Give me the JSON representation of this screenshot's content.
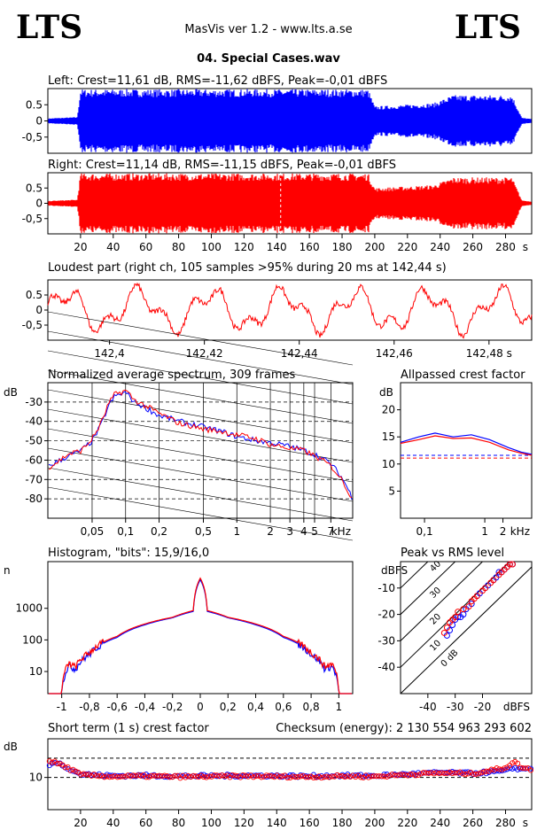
{
  "header": {
    "logo_left": "LTS",
    "logo_right": "LTS",
    "app_title": "MasVis ver 1.2 - www.lts.a.se",
    "file_name": "04. Special Cases.wav"
  },
  "colors": {
    "left": "#0000ff",
    "right": "#ff0000",
    "grid": "#000000"
  },
  "chart_data": [
    {
      "type": "area",
      "id": "left-waveform",
      "title": "Left: Crest=11,61 dB, RMS=-11,62 dBFS, Peak=-0,01 dBFS",
      "y_tick_labels": [
        "0.5",
        "0",
        "-0,5"
      ],
      "y_ticks": [
        0.5,
        0,
        -0.5
      ],
      "ylim": [
        -1,
        1
      ],
      "xlim": [
        0,
        296
      ],
      "envelope": {
        "t": [
          0,
          18,
          20,
          196,
          200,
          236,
          248,
          284,
          290,
          296
        ],
        "amp": [
          0.08,
          0.12,
          0.98,
          0.98,
          0.45,
          0.55,
          0.8,
          0.8,
          0.1,
          0.06
        ]
      }
    },
    {
      "type": "area",
      "id": "right-waveform",
      "title": "Right: Crest=11,14 dB, RMS=-11,15 dBFS, Peak=-0,01 dBFS",
      "y_tick_labels": [
        "0.5",
        "0",
        "-0,5"
      ],
      "y_ticks": [
        0.5,
        0,
        -0.5
      ],
      "ylim": [
        -1,
        1
      ],
      "xlim": [
        0,
        296
      ],
      "marker_x": 142.44,
      "x_ticks": [
        20,
        40,
        60,
        80,
        100,
        120,
        140,
        160,
        180,
        200,
        220,
        240,
        260,
        280
      ],
      "x_tick_labels": [
        "20",
        "40",
        "60",
        "80",
        "100",
        "120",
        "140",
        "160",
        "180",
        "200",
        "220",
        "240",
        "260",
        "280"
      ],
      "x_unit": "s",
      "envelope": {
        "t": [
          0,
          18,
          20,
          196,
          200,
          236,
          248,
          284,
          290,
          296
        ],
        "amp": [
          0.08,
          0.12,
          0.98,
          0.98,
          0.5,
          0.6,
          0.85,
          0.85,
          0.1,
          0.06
        ]
      }
    },
    {
      "type": "line",
      "id": "loudest-part",
      "title": "Loudest part (right ch, 105 samples >95% during 20 ms at 142,44 s)",
      "xlim": [
        142.387,
        142.489
      ],
      "ylim": [
        -1,
        1
      ],
      "y_ticks": [
        0.5,
        0,
        -0.5
      ],
      "y_tick_labels": [
        "0.5",
        "0",
        "-0,5"
      ],
      "x_ticks": [
        142.4,
        142.42,
        142.44,
        142.46,
        142.48
      ],
      "x_tick_labels": [
        "142,4",
        "142,42",
        "142,44",
        "142,46",
        "142,48 s"
      ]
    },
    {
      "type": "line",
      "id": "avg-spectrum",
      "title": "Normalized average spectrum, 309 frames",
      "ylabel": "dB",
      "ylim": [
        -90,
        -20
      ],
      "y_ticks": [
        -30,
        -40,
        -50,
        -60,
        -70,
        -80
      ],
      "y_tick_labels": [
        "-30",
        "-40",
        "-50",
        "-60",
        "-70",
        "-80"
      ],
      "x_scale": "log",
      "xlim": [
        0.02,
        11
      ],
      "x_ticks": [
        0.05,
        0.1,
        0.2,
        0.5,
        1,
        2,
        3,
        4,
        5,
        7
      ],
      "x_tick_labels": [
        "0,05",
        "0,1",
        "0,2",
        "0,5",
        "1",
        "2",
        "3",
        "4",
        "5",
        "7"
      ],
      "x_unit": "kHz",
      "series": [
        {
          "color": "#0000ff",
          "x": [
            0.02,
            0.03,
            0.04,
            0.05,
            0.06,
            0.07,
            0.08,
            0.1,
            0.12,
            0.15,
            0.2,
            0.3,
            0.5,
            0.7,
            1,
            1.5,
            2,
            3,
            4,
            5,
            7,
            9,
            11
          ],
          "y": [
            -63,
            -58,
            -55,
            -50,
            -42,
            -32,
            -27,
            -25,
            -30,
            -33,
            -37,
            -40,
            -43,
            -45,
            -48,
            -50,
            -51,
            -53,
            -55,
            -57,
            -62,
            -70,
            -80
          ]
        },
        {
          "color": "#ff0000",
          "x": [
            0.02,
            0.03,
            0.04,
            0.05,
            0.06,
            0.07,
            0.08,
            0.1,
            0.12,
            0.15,
            0.2,
            0.3,
            0.5,
            0.7,
            1,
            1.5,
            2,
            3,
            4,
            5,
            7,
            9,
            11
          ],
          "y": [
            -64,
            -57,
            -55,
            -49,
            -41,
            -31,
            -26,
            -24,
            -29,
            -32,
            -36,
            -41,
            -44,
            -45,
            -47,
            -49,
            -52,
            -54,
            -55,
            -58,
            -63,
            -71,
            -81
          ]
        }
      ]
    },
    {
      "type": "line",
      "id": "allpassed-crest",
      "title": "Allpassed crest factor",
      "ylabel": "dB",
      "ylim": [
        0,
        25
      ],
      "y_ticks": [
        20,
        15,
        10,
        5
      ],
      "y_tick_labels": [
        "20",
        "15",
        "10",
        "5"
      ],
      "x_scale": "log",
      "xlim": [
        0.04,
        6
      ],
      "x_ticks": [
        0.1,
        1,
        2
      ],
      "x_tick_labels": [
        "0,1",
        "1",
        "2"
      ],
      "x_unit": "kHz",
      "ref_lines": [
        {
          "color": "#0000ff",
          "y": 11.6
        },
        {
          "color": "#ff0000",
          "y": 11.1
        }
      ],
      "series": [
        {
          "color": "#0000ff",
          "x": [
            0.04,
            0.08,
            0.15,
            0.3,
            0.6,
            1.2,
            2.5,
            4,
            6
          ],
          "y": [
            14,
            15,
            15.7,
            15.0,
            15.4,
            14.5,
            13.0,
            12.2,
            11.8
          ]
        },
        {
          "color": "#ff0000",
          "x": [
            0.04,
            0.08,
            0.15,
            0.3,
            0.6,
            1.2,
            2.5,
            4,
            6
          ],
          "y": [
            13.8,
            14.5,
            15.2,
            14.7,
            14.8,
            14.0,
            12.6,
            12.0,
            11.6
          ]
        }
      ]
    },
    {
      "type": "line",
      "id": "histogram",
      "title": "Histogram, \"bits\": 15,9/16,0",
      "ylabel": "n",
      "y_scale": "log",
      "ylim": [
        2,
        30000
      ],
      "y_ticks": [
        10,
        100,
        1000
      ],
      "y_tick_labels": [
        "10",
        "100",
        "1000"
      ],
      "xlim": [
        -1.1,
        1.1
      ],
      "x_ticks": [
        -1,
        -0.8,
        -0.6,
        -0.4,
        -0.2,
        0,
        0.2,
        0.4,
        0.6,
        0.8,
        1
      ],
      "x_tick_labels": [
        "-1",
        "-0,8",
        "-0,6",
        "-0,4",
        "-0,2",
        "0",
        "0,2",
        "0,4",
        "0,6",
        "0,8",
        "1"
      ],
      "series": [
        {
          "color": "#0000ff",
          "x": [
            -1.1,
            -1.0,
            -0.99,
            -0.95,
            -0.9,
            -0.8,
            -0.6,
            -0.4,
            -0.2,
            -0.05,
            0,
            0.05,
            0.2,
            0.4,
            0.6,
            0.8,
            0.9,
            0.95,
            0.99,
            1.0,
            1.1
          ],
          "y": [
            2,
            2,
            5,
            15,
            12,
            35,
            120,
            300,
            500,
            800,
            8000,
            800,
            500,
            300,
            120,
            35,
            12,
            15,
            5,
            2,
            2
          ]
        },
        {
          "color": "#ff0000",
          "x": [
            -1.1,
            -1.0,
            -0.99,
            -0.95,
            -0.9,
            -0.8,
            -0.6,
            -0.4,
            -0.2,
            -0.05,
            0,
            0.05,
            0.2,
            0.4,
            0.6,
            0.8,
            0.9,
            0.95,
            0.99,
            1.0,
            1.1
          ],
          "y": [
            2,
            2,
            6,
            18,
            14,
            40,
            130,
            320,
            520,
            850,
            9000,
            850,
            520,
            320,
            130,
            40,
            14,
            18,
            6,
            2,
            2
          ]
        }
      ]
    },
    {
      "type": "scatter",
      "id": "peak-vs-rms",
      "title": "Peak vs RMS level",
      "ylabel": "dBFS",
      "ylim": [
        -50,
        0
      ],
      "y_ticks": [
        -10,
        -20,
        -30,
        -40
      ],
      "y_tick_labels": [
        "-10",
        "-20",
        "-30",
        "-40"
      ],
      "xlim": [
        -50,
        -2
      ],
      "x_ticks": [
        -40,
        -30,
        -20
      ],
      "x_tick_labels": [
        "-40",
        "-30",
        "-20"
      ],
      "x_unit": "dBFS",
      "crest_lines": [
        0,
        10,
        20,
        30,
        40
      ],
      "crest_line_labels": [
        "0 dB",
        "10",
        "20",
        "30",
        "40"
      ],
      "series": [
        {
          "color": "#0000ff",
          "x": [
            -33,
            -32,
            -31,
            -30,
            -29,
            -28,
            -27,
            -26,
            -24,
            -22,
            -21,
            -19,
            -18,
            -16,
            -15,
            -14,
            -13,
            -12,
            -11,
            -10,
            -9
          ],
          "y": [
            -28,
            -26,
            -24,
            -22,
            -21,
            -21,
            -20,
            -18,
            -16,
            -13,
            -12,
            -10,
            -9,
            -7,
            -6,
            -4,
            -4,
            -3,
            -2,
            -1,
            -1
          ]
        },
        {
          "color": "#ff0000",
          "x": [
            -34,
            -33,
            -32,
            -31,
            -30,
            -29,
            -27,
            -25,
            -24,
            -23,
            -22,
            -20,
            -19,
            -17,
            -16,
            -14,
            -13,
            -12,
            -11,
            -10,
            -9
          ],
          "y": [
            -27,
            -25,
            -23,
            -22,
            -21,
            -19,
            -18,
            -17,
            -15,
            -14,
            -13,
            -11,
            -10,
            -8,
            -7,
            -5,
            -4,
            -3,
            -2,
            -1,
            -1
          ]
        }
      ]
    },
    {
      "type": "scatter",
      "id": "short-term-crest",
      "title": "Short term (1 s) crest factor",
      "checksum": "Checksum (energy):  2 130 554 963 293 602",
      "ylabel": "dB",
      "ylim": [
        0,
        22
      ],
      "y_ticks": [
        10
      ],
      "y_tick_labels": [
        "10"
      ],
      "ref_lines_y": [
        10,
        16
      ],
      "xlim": [
        0,
        296
      ],
      "x_ticks": [
        20,
        40,
        60,
        80,
        100,
        120,
        140,
        160,
        180,
        200,
        220,
        240,
        260,
        280
      ],
      "x_tick_labels": [
        "20",
        "40",
        "60",
        "80",
        "100",
        "120",
        "140",
        "160",
        "180",
        "200",
        "220",
        "240",
        "260",
        "280"
      ],
      "x_unit": "s",
      "series": [
        {
          "color": "#0000ff",
          "x": [
            2,
            5,
            8,
            12,
            16,
            20,
            40,
            60,
            80,
            100,
            120,
            140,
            160,
            180,
            200,
            220,
            240,
            260,
            280,
            285,
            290,
            295
          ],
          "y": [
            14,
            15,
            14,
            13,
            12,
            11,
            10.5,
            10.6,
            10.4,
            10.5,
            10.6,
            10.5,
            10.4,
            10.6,
            10.5,
            11,
            11.5,
            11.3,
            12,
            13,
            12.5,
            13
          ]
        },
        {
          "color": "#ff0000",
          "x": [
            2,
            5,
            8,
            12,
            16,
            20,
            40,
            60,
            80,
            100,
            120,
            140,
            160,
            180,
            200,
            220,
            240,
            260,
            280,
            285,
            290,
            295
          ],
          "y": [
            15,
            14.5,
            14,
            13,
            12,
            10.8,
            10.3,
            10.4,
            10.2,
            10.3,
            10.4,
            10.3,
            10.2,
            10.4,
            10.3,
            10.9,
            11.4,
            11.2,
            13,
            15,
            13,
            12.5
          ]
        }
      ]
    }
  ]
}
